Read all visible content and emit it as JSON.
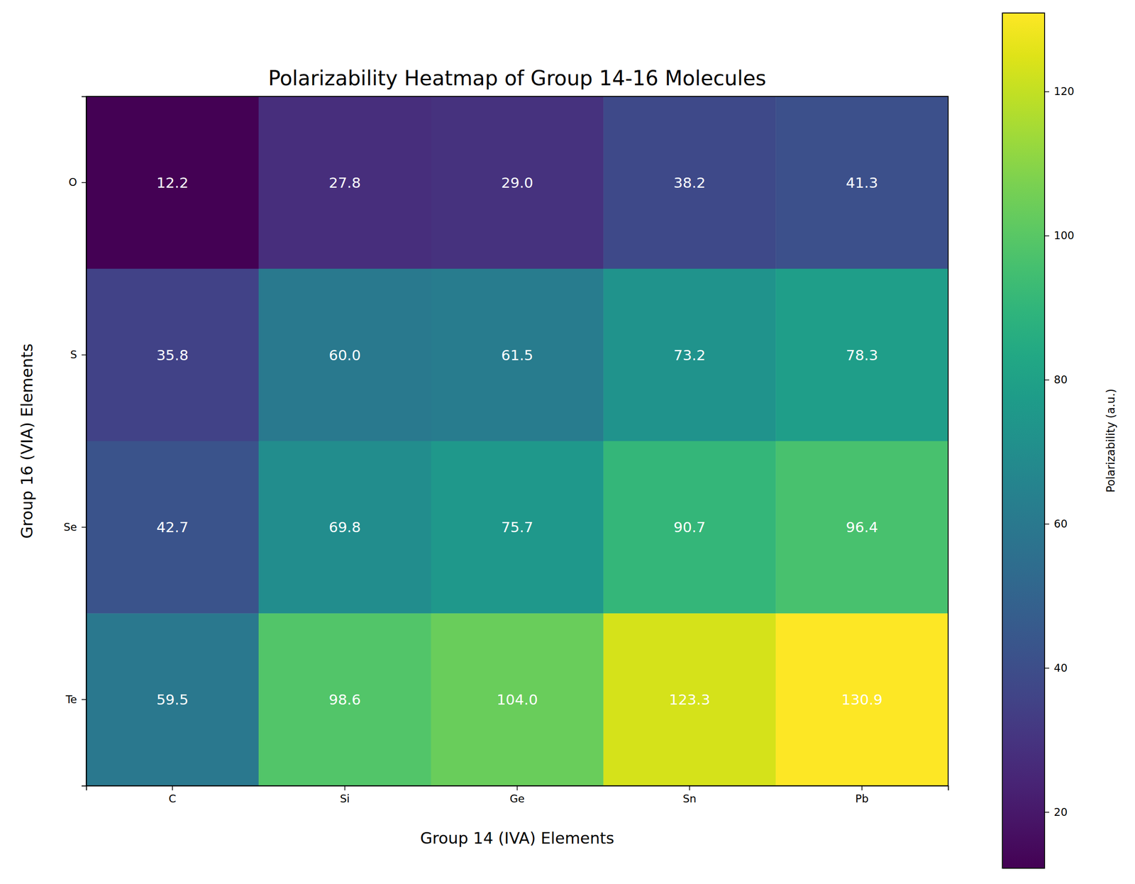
{
  "chart_data": {
    "type": "heatmap",
    "title": "Polarizability Heatmap of Group 14-16 Molecules",
    "x_label": "Group 14 (IVA) Elements",
    "y_label": "Group 16 (VIA) Elements",
    "categories": [
      "C",
      "Si",
      "Ge",
      "Sn",
      "Pb"
    ],
    "y_categories": [
      "O",
      "S",
      "Se",
      "Te"
    ],
    "values": [
      [
        12.2,
        27.8,
        29.0,
        38.2,
        41.3
      ],
      [
        35.8,
        60.0,
        61.5,
        73.2,
        78.3
      ],
      [
        42.7,
        69.8,
        75.7,
        90.7,
        96.4
      ],
      [
        59.5,
        98.6,
        104.0,
        123.3,
        130.9
      ]
    ],
    "value_labels": [
      [
        "12.2",
        "27.8",
        "29.0",
        "38.2",
        "41.3"
      ],
      [
        "35.8",
        "60.0",
        "61.5",
        "73.2",
        "78.3"
      ],
      [
        "42.7",
        "69.8",
        "75.7",
        "90.7",
        "96.4"
      ],
      [
        "59.5",
        "98.6",
        "104.0",
        "123.3",
        "130.9"
      ]
    ],
    "data_labels": true,
    "color": "viridis",
    "colorbar": {
      "label": "Polarizability (a.u.)",
      "range": [
        12.2,
        130.9
      ],
      "ticks": [
        20,
        40,
        60,
        80,
        100,
        120
      ]
    }
  }
}
